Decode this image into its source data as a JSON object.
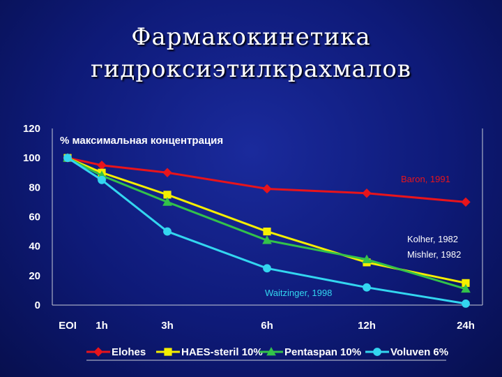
{
  "title": {
    "line1": "Фармакокинетика",
    "line2": "гидроксиэтилкрахмалов"
  },
  "chart_data": {
    "type": "line",
    "ylabel": "% максимальная концентрация",
    "ylim": [
      0,
      120
    ],
    "yticks": [
      0,
      20,
      40,
      60,
      80,
      100,
      120
    ],
    "categories": [
      "EOI",
      "1h",
      "3h",
      "6h",
      "12h",
      "24h"
    ],
    "grid": false,
    "legend_position": "bottom",
    "series": [
      {
        "name": "Elohes",
        "color": "#e8141b",
        "marker": "diamond",
        "values": [
          100,
          95,
          90,
          79,
          76,
          70
        ]
      },
      {
        "name": "HAES-steril 10%",
        "color": "#f5ee00",
        "marker": "square",
        "values": [
          100,
          90,
          75,
          50,
          29,
          15
        ]
      },
      {
        "name": "Pentaspan 10%",
        "color": "#33c24a",
        "marker": "triangle",
        "values": [
          100,
          88,
          70,
          44,
          31,
          11
        ]
      },
      {
        "name": "Voluven 6%",
        "color": "#33d6f0",
        "marker": "circle",
        "values": [
          100,
          85,
          50,
          25,
          12,
          1
        ]
      }
    ],
    "annotations": [
      {
        "text": "Baron, 1991",
        "color": "#e8141b",
        "near": "Elohes"
      },
      {
        "text": "Kolher, 1982",
        "color": "#ffffff",
        "near": "HAES-steril 10%"
      },
      {
        "text": "Mishler, 1982",
        "color": "#ffffff",
        "near": "Pentaspan 10%"
      },
      {
        "text": "Waitzinger, 1998",
        "color": "#33d6f0",
        "near": "Voluven 6%"
      }
    ]
  }
}
